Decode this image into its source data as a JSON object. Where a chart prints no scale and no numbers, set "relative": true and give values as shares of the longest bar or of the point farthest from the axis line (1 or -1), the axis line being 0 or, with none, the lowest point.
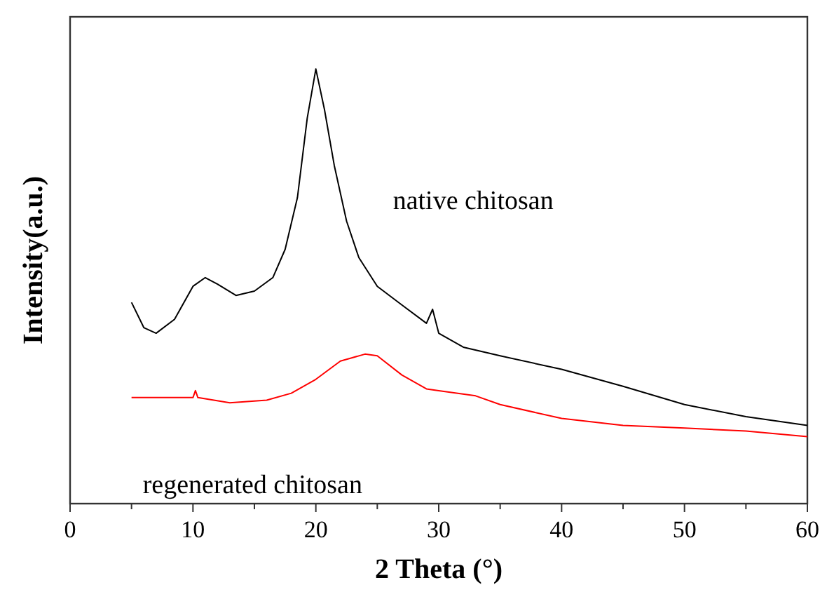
{
  "chart_data": {
    "type": "line",
    "relative": true,
    "xlabel": "2 Theta (°)",
    "ylabel": "Intensity(a.u.)",
    "xlim": [
      0,
      60
    ],
    "xticks": [
      0,
      {
        "value": 5,
        "label": null
      },
      10,
      {
        "value": 15,
        "label": null
      },
      20,
      {
        "value": 25,
        "label": null
      },
      30,
      {
        "value": 35,
        "label": null
      },
      40,
      {
        "value": 45,
        "label": null
      },
      50,
      {
        "value": 55,
        "label": null
      },
      60
    ],
    "grid": false,
    "marker": "none",
    "line_style": "solid",
    "series": [
      {
        "name": "native chitosan",
        "color": "#000000",
        "x": [
          5,
          6,
          7,
          8.5,
          10,
          11,
          12,
          13.5,
          15,
          16.5,
          17.5,
          18.5,
          19.3,
          20,
          20.7,
          21.5,
          22.5,
          23.5,
          25,
          27,
          29,
          29.5,
          30,
          32,
          35,
          40,
          45,
          50,
          55,
          60
        ],
        "values": [
          0.463,
          0.405,
          0.392,
          0.424,
          0.5,
          0.52,
          0.505,
          0.479,
          0.489,
          0.52,
          0.585,
          0.704,
          0.887,
          1,
          0.907,
          0.778,
          0.65,
          0.566,
          0.5,
          0.457,
          0.415,
          0.447,
          0.392,
          0.36,
          0.34,
          0.309,
          0.27,
          0.228,
          0.2,
          0.18
        ]
      },
      {
        "name": "regenerated chitosan",
        "color": "#ff0000",
        "x": [
          5,
          10,
          10.2,
          10.4,
          13,
          16,
          18,
          20,
          22,
          24,
          25,
          27,
          29,
          30,
          33,
          35,
          40,
          45,
          50,
          55,
          60
        ],
        "values": [
          0.244,
          0.244,
          0.26,
          0.244,
          0.232,
          0.238,
          0.254,
          0.286,
          0.328,
          0.344,
          0.34,
          0.296,
          0.264,
          0.26,
          0.248,
          0.228,
          0.196,
          0.18,
          0.174,
          0.167,
          0.154
        ]
      }
    ]
  }
}
